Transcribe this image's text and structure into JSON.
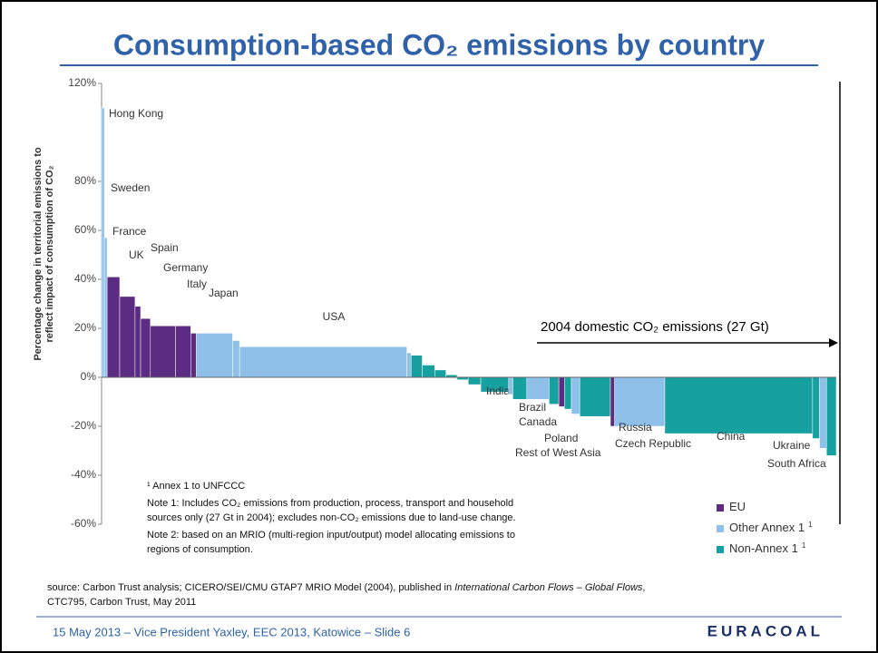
{
  "header": {
    "title": "Consumption-based CO₂ emissions by country"
  },
  "chart_data": {
    "type": "bar",
    "y_label": [
      "Percentage change in territorial emissions to",
      "reflect impact of consumption of CO₂"
    ],
    "ylim": [
      -60,
      120
    ],
    "yticks": [
      {
        "value": -60,
        "label": "-60%"
      },
      {
        "value": -40,
        "label": "-40%"
      },
      {
        "value": -20,
        "label": "-20%"
      },
      {
        "value": 0,
        "label": "0%"
      },
      {
        "value": 20,
        "label": "20%"
      },
      {
        "value": 40,
        "label": "40%"
      },
      {
        "value": 60,
        "label": "60%"
      },
      {
        "value": 80,
        "label": "80%"
      },
      {
        "value": 120,
        "label": "120%"
      }
    ],
    "categories": [
      "Hong Kong",
      "Sweden",
      "France",
      "UK",
      null,
      "Spain",
      "Germany",
      "Italy",
      null,
      "Japan",
      null,
      "USA",
      null,
      null,
      null,
      null,
      null,
      null,
      null,
      "India",
      null,
      "Brazil",
      "Canada",
      null,
      "Poland",
      "Rest of West Asia",
      null,
      null,
      "Czech Republic",
      "Russia",
      "China",
      "Ukraine",
      null,
      "South Africa"
    ],
    "values": [
      110,
      57,
      41,
      33,
      29,
      24,
      21,
      21,
      18,
      18,
      15,
      12.5,
      10,
      9,
      5,
      3,
      1,
      -1,
      -3,
      -6,
      -7,
      -9,
      -9,
      -11,
      -12,
      -13,
      -15,
      -16,
      -20,
      -20,
      -23,
      -25,
      -29,
      -32
    ],
    "widths": [
      0.1,
      0.1,
      0.45,
      0.55,
      0.2,
      0.35,
      0.9,
      0.55,
      0.2,
      1.3,
      0.25,
      6,
      0.15,
      0.4,
      0.45,
      0.4,
      0.4,
      0.4,
      0.45,
      1,
      0.15,
      0.5,
      0.8,
      0.35,
      0.2,
      0.25,
      0.3,
      1.1,
      0.15,
      1.8,
      5.3,
      0.25,
      0.25,
      0.35
    ],
    "groups": [
      1,
      1,
      0,
      0,
      0,
      0,
      0,
      0,
      0,
      1,
      1,
      1,
      1,
      2,
      2,
      2,
      2,
      2,
      2,
      2,
      1,
      2,
      1,
      2,
      0,
      2,
      1,
      2,
      0,
      1,
      2,
      2,
      1,
      2
    ],
    "series": [
      {
        "name": "EU",
        "color": "#5b2c82"
      },
      {
        "name": "Other Annex 1",
        "color": "#8fc0ea"
      },
      {
        "name": "Non-Annex 1",
        "color": "#17a0a0"
      }
    ],
    "legend_superscript": "1",
    "width_label": "2004 domestic CO₂ emissions (27 Gt)",
    "notes": [
      "¹ Annex 1 to UNFCCC",
      "Note 1:  Includes CO₂ emissions from production, process, transport and household",
      "sources only (27 Gt in 2004);  excludes non-CO₂ emissions due to land-use change.",
      "Note 2:  based on an MRIO (multi-region input/output) model allocating emissions to",
      "regions of consumption."
    ]
  },
  "source": [
    "source:  Carbon Trust analysis; CICERO/SEI/CMU GTAP7 MRIO Model (2004), published in ",
    "International Carbon Flows – Global Flows",
    ",",
    "CTC795, Carbon Trust, May 2011"
  ],
  "footer": {
    "text": "15 May 2013 – Vice President Yaxley, EEC 2013, Katowice  – Slide 6",
    "logo": "EURACOAL"
  }
}
